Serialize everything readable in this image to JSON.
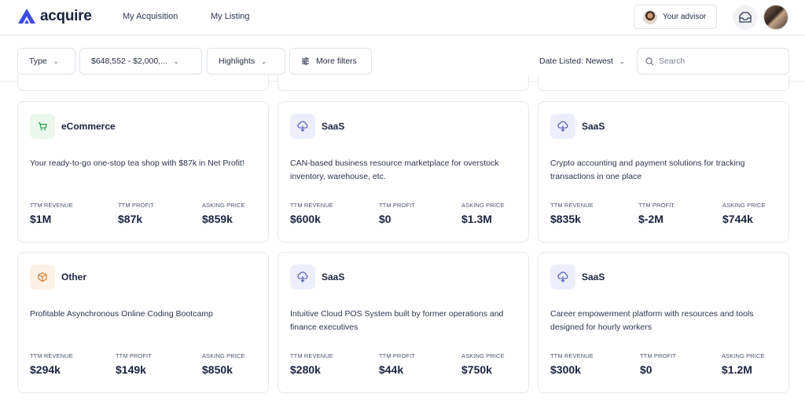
{
  "brand": {
    "name": "acquire",
    "accent": "#3b4ce8"
  },
  "nav": {
    "my_acquisition": "My Acquisition",
    "my_listing": "My Listing",
    "advisor_label": "Your advisor"
  },
  "filters": {
    "type": "Type",
    "price_range": "$648,552 - $2,000,...",
    "highlights": "Highlights",
    "more_filters": "More filters",
    "sort": "Date Listed: Newest",
    "search_placeholder": "Search"
  },
  "metric_labels": {
    "revenue": "TTM REVENUE",
    "profit": "TTM PROFIT",
    "price": "ASKING PRICE"
  },
  "listings": [
    {
      "category": "eCommerce",
      "icon": "cart-icon",
      "description": "Your ready-to-go one-stop tea shop with $87k in Net Profit!",
      "revenue": "$1M",
      "profit": "$87k",
      "price": "$859k"
    },
    {
      "category": "SaaS",
      "icon": "cloud-icon",
      "description": "CAN-based business resource marketplace for overstock inventory, warehouse, etc.",
      "revenue": "$600k",
      "profit": "$0",
      "price": "$1.3M"
    },
    {
      "category": "SaaS",
      "icon": "cloud-icon",
      "description": "Crypto accounting and payment solutions for tracking transactions in one place",
      "revenue": "$835k",
      "profit": "$-2M",
      "price": "$744k"
    },
    {
      "category": "Other",
      "icon": "box-icon",
      "description": "Profitable Asynchronous Online Coding Bootcamp",
      "revenue": "$294k",
      "profit": "$149k",
      "price": "$850k"
    },
    {
      "category": "SaaS",
      "icon": "cloud-icon",
      "description": "Intuitive Cloud POS System built by former operations and finance executives",
      "revenue": "$280k",
      "profit": "$44k",
      "price": "$750k"
    },
    {
      "category": "SaaS",
      "icon": "cloud-icon",
      "description": "Career empowerment platform with resources and tools designed for hourly workers",
      "revenue": "$300k",
      "profit": "$0",
      "price": "$1.2M"
    }
  ]
}
